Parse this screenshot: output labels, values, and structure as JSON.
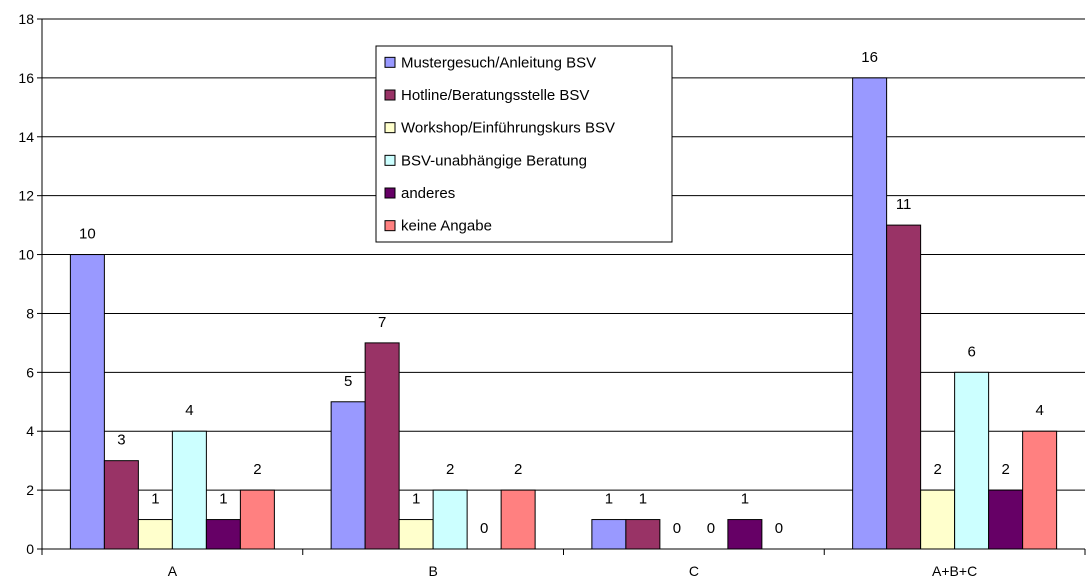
{
  "chart_data": {
    "type": "bar",
    "title": "",
    "xlabel": "",
    "ylabel": "",
    "ylim": [
      0,
      18
    ],
    "yticks": [
      0,
      2,
      4,
      6,
      8,
      10,
      12,
      14,
      16,
      18
    ],
    "grid": "horizontal",
    "legend_position": "top-center",
    "categories": [
      "A",
      "B",
      "C",
      "A+B+C"
    ],
    "series": [
      {
        "name": "Mustergesuch/Anleitung BSV",
        "color": "#9999ff",
        "values": [
          10,
          5,
          1,
          16
        ],
        "labels": [
          "10",
          "5",
          "1",
          "16"
        ]
      },
      {
        "name": "Hotline/Beratungsstelle BSV",
        "color": "#993366",
        "values": [
          3,
          7,
          1,
          11
        ],
        "labels": [
          "3",
          "7",
          "1",
          "11"
        ]
      },
      {
        "name": "Workshop/Einführungskurs BSV",
        "color": "#ffffcc",
        "values": [
          1,
          1,
          0,
          2
        ],
        "labels": [
          "1",
          "1",
          "0",
          "2"
        ]
      },
      {
        "name": "BSV-unabhängige Beratung",
        "color": "#ccffff",
        "values": [
          4,
          2,
          0,
          6
        ],
        "labels": [
          "4",
          "2",
          "0",
          "6"
        ]
      },
      {
        "name": "anderes",
        "color": "#660066",
        "values": [
          1,
          0,
          1,
          2
        ],
        "labels": [
          "1",
          "0",
          "1",
          "2"
        ]
      },
      {
        "name": "keine Angabe",
        "color": "#ff8080",
        "values": [
          2,
          2,
          0,
          4
        ],
        "labels": [
          "2",
          "2",
          "0",
          "4"
        ]
      }
    ]
  }
}
